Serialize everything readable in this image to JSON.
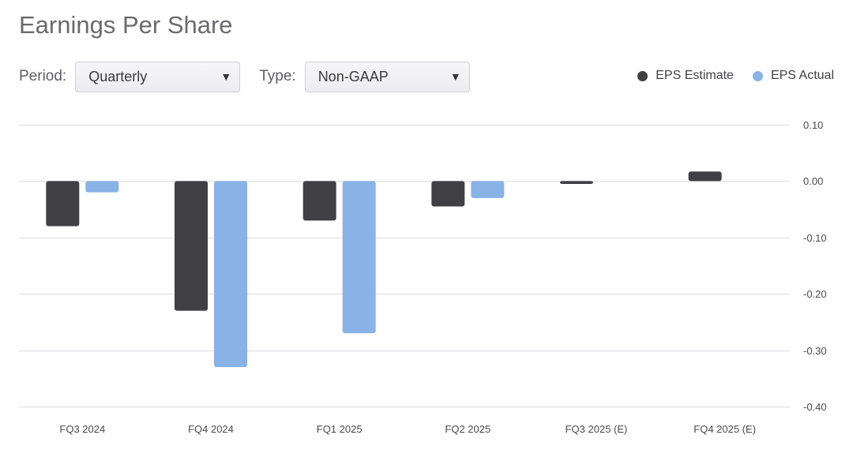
{
  "title": "Earnings Per Share",
  "controls": {
    "period_label": "Period:",
    "period_value": "Quarterly",
    "type_label": "Type:",
    "type_value": "Non-GAAP"
  },
  "colors": {
    "estimate": "#404043",
    "actual": "#89b3e6",
    "grid": "#dcdce0"
  },
  "chart_data": {
    "type": "bar",
    "title": "Earnings Per Share",
    "xlabel": "",
    "ylabel": "",
    "ylim": [
      -0.4,
      0.1
    ],
    "yticks": [
      0.1,
      0.0,
      -0.1,
      -0.2,
      -0.3,
      -0.4
    ],
    "ytick_labels": [
      "0.10",
      "0.00",
      "-0.10",
      "-0.20",
      "-0.30",
      "-0.40"
    ],
    "categories": [
      "FQ3 2024",
      "FQ4 2024",
      "FQ1 2025",
      "FQ2 2025",
      "FQ3 2025 (E)",
      "FQ4 2025 (E)"
    ],
    "series": [
      {
        "name": "EPS Estimate",
        "color": "#404043",
        "values": [
          -0.08,
          -0.23,
          -0.07,
          -0.045,
          -0.005,
          0.017
        ]
      },
      {
        "name": "EPS Actual",
        "color": "#89b3e6",
        "values": [
          -0.02,
          -0.33,
          -0.27,
          -0.03,
          null,
          null
        ]
      }
    ],
    "legend_position": "top-right",
    "grid": true
  }
}
